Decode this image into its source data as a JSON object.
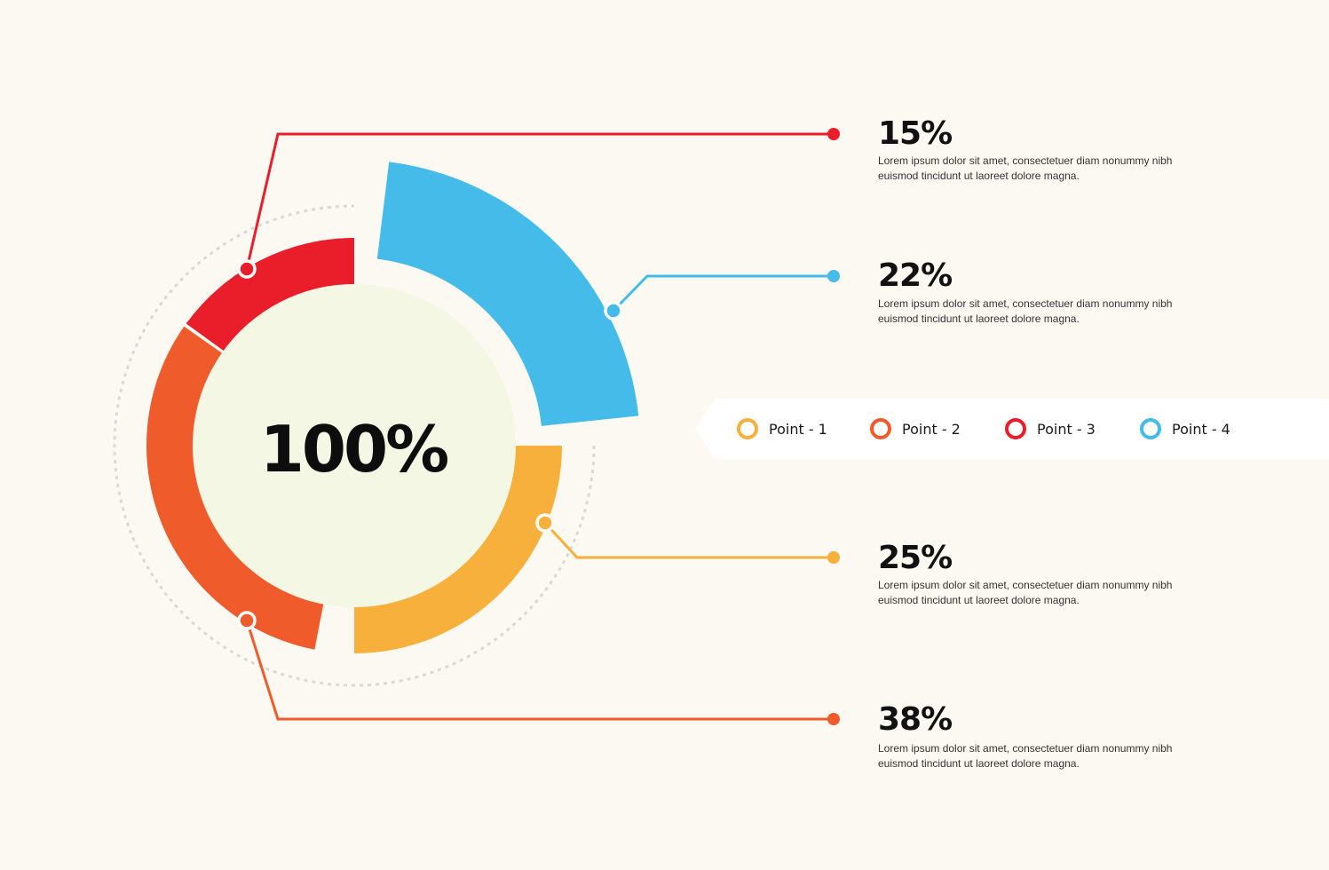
{
  "chart_data": {
    "type": "pie",
    "center_label": "100%",
    "colors": {
      "point_1": "#f7b03c",
      "point_2": "#ef5b2a",
      "point_3": "#e91e2a",
      "point_4": "#45bbe9"
    },
    "segments": [
      {
        "value": 15,
        "label": "15%",
        "color": "#e91e2a",
        "description": "Lorem ipsum dolor sit amet, consectetuer diam nonummy nibh euismod tincidunt ut laoreet dolore magna."
      },
      {
        "value": 22,
        "label": "22%",
        "color": "#45bbe9",
        "description": "Lorem ipsum dolor sit amet, consectetuer diam nonummy nibh euismod tincidunt ut laoreet dolore magna."
      },
      {
        "value": 25,
        "label": "25%",
        "color": "#f7b03c",
        "description": "Lorem ipsum dolor sit amet, consectetuer diam nonummy nibh euismod tincidunt ut laoreet dolore magna."
      },
      {
        "value": 38,
        "label": "38%",
        "color": "#ef5b2a",
        "description": "Lorem ipsum dolor sit amet, consectetuer diam nonummy nibh euismod tincidunt ut laoreet dolore magna."
      }
    ],
    "legend": [
      {
        "label": "Point - 1",
        "color": "#f7b03c"
      },
      {
        "label": "Point - 2",
        "color": "#ef5b2a"
      },
      {
        "label": "Point - 3",
        "color": "#e91e2a"
      },
      {
        "label": "Point - 4",
        "color": "#45bbe9"
      }
    ]
  }
}
